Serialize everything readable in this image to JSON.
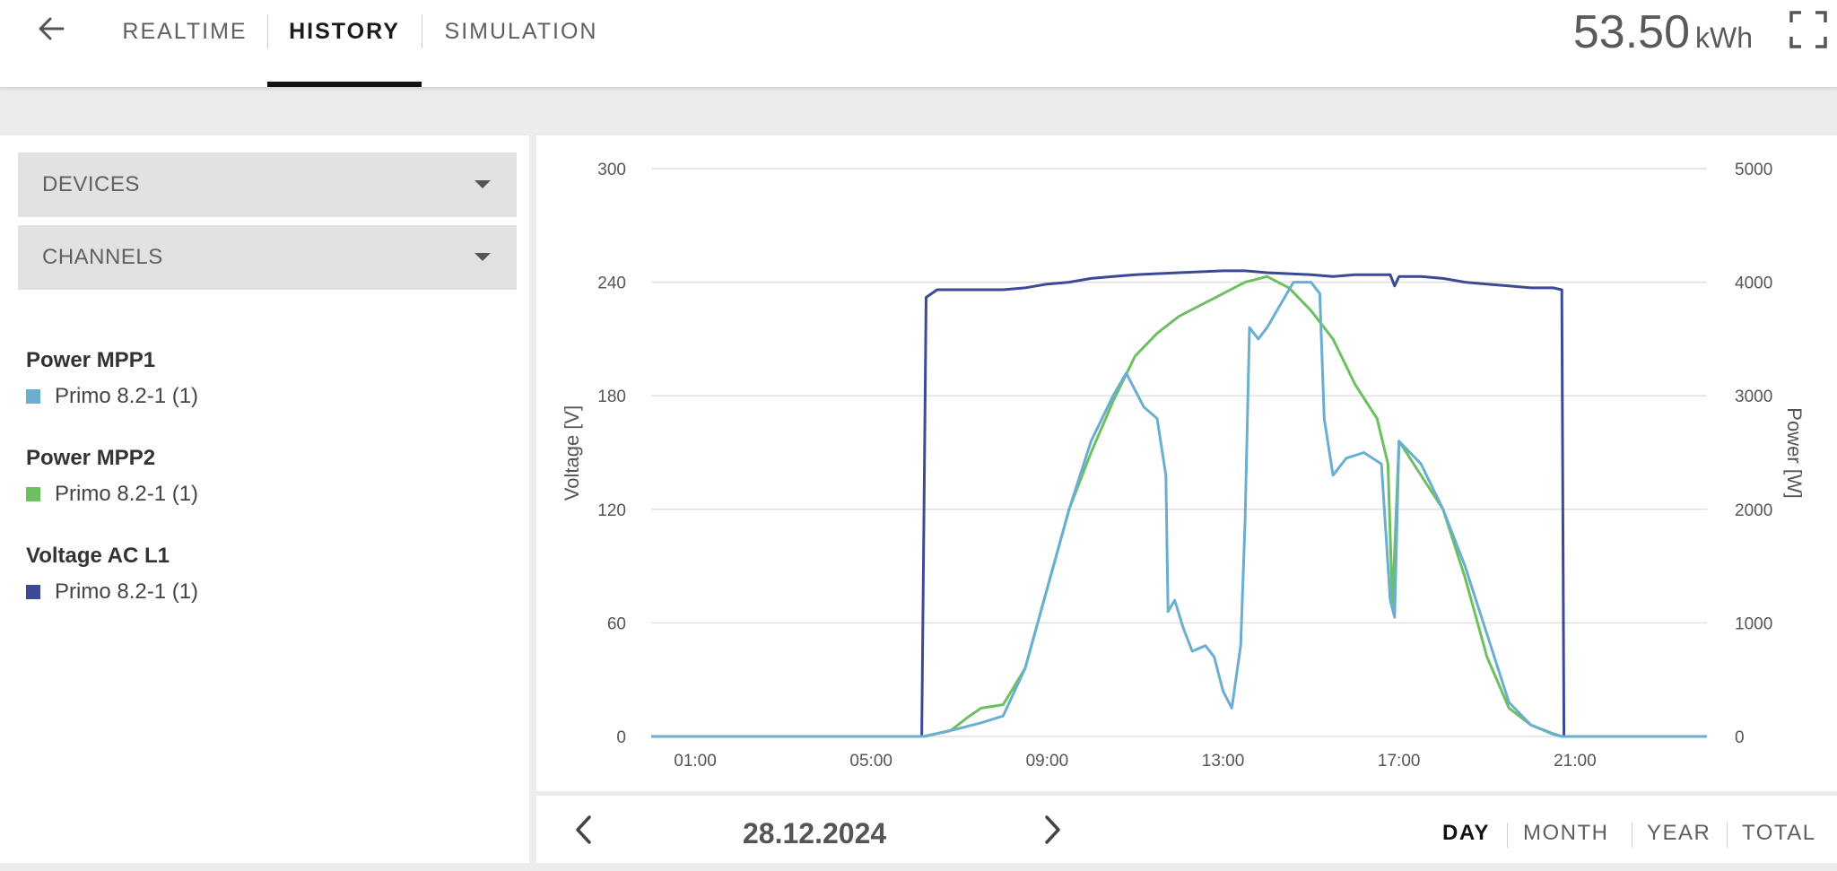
{
  "header": {
    "tabs": [
      {
        "label": "REALTIME"
      },
      {
        "label": "HISTORY",
        "active": true
      },
      {
        "label": "SIMULATION"
      }
    ],
    "energy_value": "53.50",
    "energy_unit": "kWh",
    "icons": [
      "back-arrow-icon",
      "fullscreen-icon"
    ]
  },
  "sidebar": {
    "devices_label": "DEVICES",
    "channels_label": "CHANNELS",
    "legend": [
      {
        "title": "Power MPP1",
        "item": "Primo 8.2-1 (1)",
        "color": "#6aaed0"
      },
      {
        "title": "Power MPP2",
        "item": "Primo 8.2-1 (1)",
        "color": "#6cc060"
      },
      {
        "title": "Voltage AC L1",
        "item": "Primo 8.2-1 (1)",
        "color": "#3c4a96"
      }
    ]
  },
  "chart_data": {
    "type": "line",
    "ylabel_left": "Voltage [V]",
    "ylabel_right": "Power [W]",
    "y_left_ticks": [
      "0",
      "60",
      "120",
      "180",
      "240",
      "300"
    ],
    "y_right_ticks": [
      "0",
      "1000",
      "2000",
      "3000",
      "4000",
      "5000"
    ],
    "y_left_lim": [
      0,
      300
    ],
    "y_right_lim": [
      0,
      5000
    ],
    "x_ticks": [
      "01:00",
      "05:00",
      "09:00",
      "13:00",
      "17:00",
      "21:00"
    ],
    "x_lim_hours": [
      0,
      24
    ],
    "grid": true,
    "series": [
      {
        "name": "Voltage AC L1",
        "axis": "left",
        "color": "#3c4a96",
        "points": [
          [
            0,
            0
          ],
          [
            6.15,
            0
          ],
          [
            6.25,
            232
          ],
          [
            6.5,
            236
          ],
          [
            7.5,
            236
          ],
          [
            8,
            236
          ],
          [
            8.5,
            237
          ],
          [
            9,
            239
          ],
          [
            9.5,
            240
          ],
          [
            10,
            242
          ],
          [
            10.5,
            243
          ],
          [
            11,
            244
          ],
          [
            12,
            245
          ],
          [
            13,
            246
          ],
          [
            13.5,
            246
          ],
          [
            14,
            245
          ],
          [
            15,
            244
          ],
          [
            15.5,
            243
          ],
          [
            16,
            244
          ],
          [
            16.5,
            244
          ],
          [
            16.8,
            244
          ],
          [
            16.9,
            238
          ],
          [
            17,
            243
          ],
          [
            17.5,
            243
          ],
          [
            18,
            242
          ],
          [
            18.5,
            240
          ],
          [
            19,
            239
          ],
          [
            19.5,
            238
          ],
          [
            20,
            237
          ],
          [
            20.5,
            237
          ],
          [
            20.7,
            236
          ],
          [
            20.75,
            0
          ],
          [
            24,
            0
          ]
        ]
      },
      {
        "name": "Power MPP1",
        "axis": "right",
        "color": "#6aaed0",
        "points": [
          [
            0,
            0
          ],
          [
            6.2,
            0
          ],
          [
            7,
            70
          ],
          [
            7.5,
            120
          ],
          [
            8,
            180
          ],
          [
            8.5,
            600
          ],
          [
            9,
            1300
          ],
          [
            9.5,
            2000
          ],
          [
            10,
            2600
          ],
          [
            10.5,
            3000
          ],
          [
            10.8,
            3200
          ],
          [
            11.2,
            2900
          ],
          [
            11.5,
            2800
          ],
          [
            11.7,
            2300
          ],
          [
            11.75,
            1100
          ],
          [
            11.9,
            1200
          ],
          [
            12.1,
            950
          ],
          [
            12.3,
            750
          ],
          [
            12.6,
            800
          ],
          [
            12.8,
            700
          ],
          [
            13,
            400
          ],
          [
            13.2,
            250
          ],
          [
            13.4,
            800
          ],
          [
            13.5,
            1900
          ],
          [
            13.6,
            3600
          ],
          [
            13.8,
            3500
          ],
          [
            14,
            3600
          ],
          [
            14.3,
            3800
          ],
          [
            14.6,
            4000
          ],
          [
            15,
            4000
          ],
          [
            15.2,
            3900
          ],
          [
            15.3,
            2800
          ],
          [
            15.5,
            2300
          ],
          [
            15.8,
            2450
          ],
          [
            16.2,
            2500
          ],
          [
            16.6,
            2400
          ],
          [
            16.8,
            1200
          ],
          [
            16.9,
            1050
          ],
          [
            17,
            2600
          ],
          [
            17.5,
            2400
          ],
          [
            18,
            2000
          ],
          [
            18.5,
            1500
          ],
          [
            19,
            900
          ],
          [
            19.5,
            300
          ],
          [
            20,
            100
          ],
          [
            20.5,
            20
          ],
          [
            20.7,
            0
          ],
          [
            24,
            0
          ]
        ]
      },
      {
        "name": "Power MPP2",
        "axis": "right",
        "color": "#6cc060",
        "points": [
          [
            0,
            0
          ],
          [
            6.2,
            0
          ],
          [
            6.8,
            50
          ],
          [
            7.2,
            170
          ],
          [
            7.5,
            250
          ],
          [
            8,
            280
          ],
          [
            8.5,
            600
          ],
          [
            9,
            1300
          ],
          [
            9.5,
            2000
          ],
          [
            10,
            2500
          ],
          [
            10.5,
            2950
          ],
          [
            11,
            3350
          ],
          [
            11.5,
            3550
          ],
          [
            12,
            3700
          ],
          [
            12.5,
            3800
          ],
          [
            13,
            3900
          ],
          [
            13.5,
            4000
          ],
          [
            14,
            4050
          ],
          [
            14.5,
            3950
          ],
          [
            15,
            3750
          ],
          [
            15.5,
            3500
          ],
          [
            16,
            3100
          ],
          [
            16.5,
            2800
          ],
          [
            16.75,
            2400
          ],
          [
            16.85,
            1150
          ],
          [
            17,
            2600
          ],
          [
            17.5,
            2300
          ],
          [
            18,
            2000
          ],
          [
            18.5,
            1400
          ],
          [
            19,
            700
          ],
          [
            19.5,
            250
          ],
          [
            20,
            100
          ],
          [
            20.5,
            25
          ],
          [
            20.7,
            0
          ],
          [
            24,
            0
          ]
        ]
      }
    ]
  },
  "footer": {
    "date": "28.12.2024",
    "periods": [
      {
        "label": "DAY",
        "active": true
      },
      {
        "label": "MONTH"
      },
      {
        "label": "YEAR"
      },
      {
        "label": "TOTAL"
      }
    ],
    "icons": [
      "chevron-left-icon",
      "chevron-right-icon"
    ]
  }
}
